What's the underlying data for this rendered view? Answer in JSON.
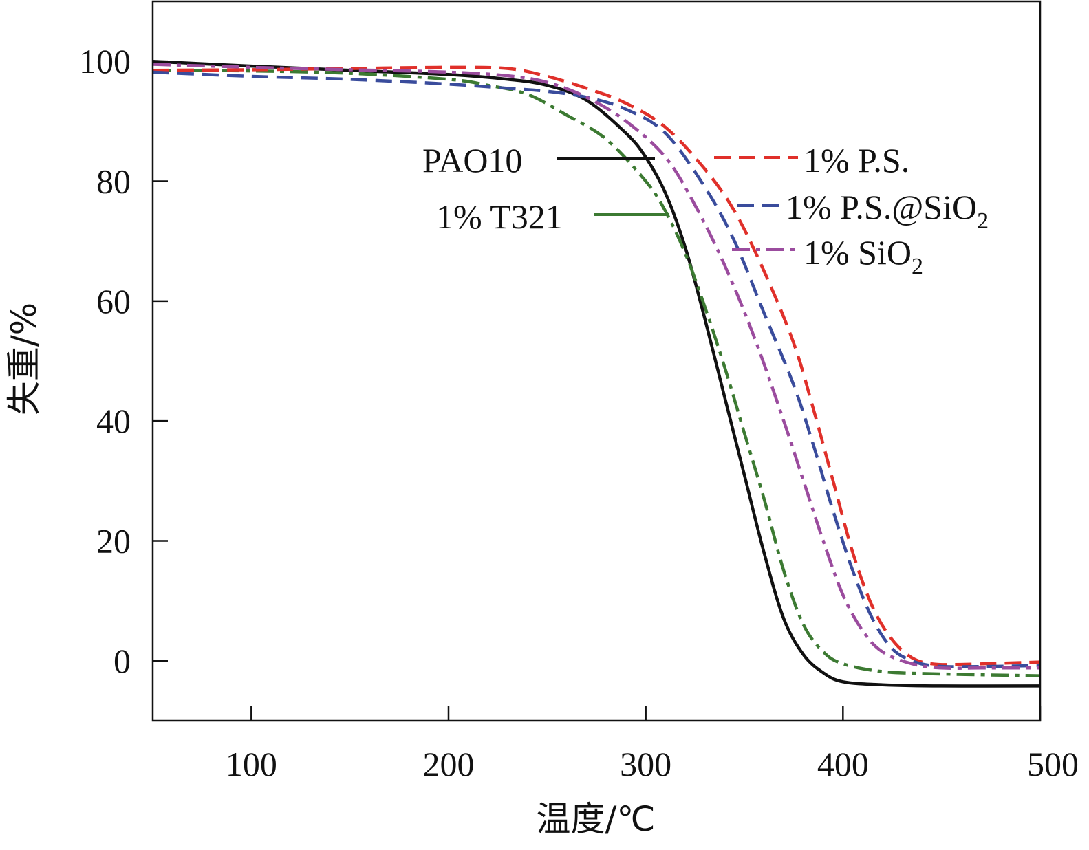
{
  "chart_data": {
    "type": "line",
    "title": "",
    "xlabel": "温度/℃",
    "ylabel": "失重/%",
    "xlim": [
      50,
      500
    ],
    "ylim": [
      -10,
      110
    ],
    "xticks": [
      100,
      200,
      300,
      400,
      500
    ],
    "yticks": [
      0,
      20,
      40,
      60,
      80,
      100
    ],
    "x_tick_labels": [
      "100",
      "200",
      "300",
      "400",
      "500"
    ],
    "y_tick_labels": [
      "0",
      "20",
      "40",
      "60",
      "80",
      "100"
    ],
    "grid": false,
    "series": [
      {
        "name": "PAO10",
        "color": "#111111",
        "style": "solid",
        "x": [
          50,
          100,
          150,
          200,
          230,
          250,
          270,
          290,
          300,
          310,
          320,
          330,
          340,
          350,
          360,
          370,
          380,
          390,
          400,
          420,
          450,
          500
        ],
        "y": [
          100,
          99.2,
          98.5,
          97.8,
          97,
          96,
          93.5,
          88,
          84,
          78,
          69,
          57,
          44,
          31,
          18,
          7,
          1,
          -2,
          -3.5,
          -4,
          -4.2,
          -4.2
        ]
      },
      {
        "name": "1% T321",
        "color": "#3c7a32",
        "style": "dashdot",
        "x": [
          50,
          100,
          150,
          200,
          220,
          240,
          260,
          280,
          300,
          310,
          320,
          330,
          340,
          350,
          360,
          370,
          380,
          390,
          400,
          420,
          450,
          500
        ],
        "y": [
          98.5,
          98.4,
          98,
          97,
          96,
          94.5,
          91,
          87,
          80,
          75,
          68,
          59,
          49,
          38,
          27,
          15,
          6,
          1.5,
          -0.5,
          -1.8,
          -2.2,
          -2.5
        ]
      },
      {
        "name": "1% P.S.",
        "color": "#e0302a",
        "style": "dashed",
        "x": [
          50,
          100,
          150,
          200,
          230,
          250,
          270,
          290,
          310,
          330,
          345,
          360,
          375,
          385,
          395,
          405,
          415,
          425,
          435,
          445,
          460,
          500
        ],
        "y": [
          98.5,
          98.6,
          98.8,
          99,
          98.8,
          97.5,
          95.5,
          93,
          89,
          82,
          75,
          65,
          53,
          42,
          30,
          18,
          9,
          3.5,
          0.5,
          -0.5,
          -0.6,
          -0.2
        ]
      },
      {
        "name": "1% P.S.@SiO2",
        "color": "#3a4c9c",
        "style": "dashed",
        "x": [
          50,
          100,
          150,
          200,
          230,
          250,
          270,
          290,
          310,
          330,
          345,
          360,
          375,
          385,
          395,
          405,
          415,
          425,
          435,
          445,
          460,
          500
        ],
        "y": [
          98.2,
          97.5,
          97,
          96.2,
          95.5,
          95,
          94,
          92,
          88,
          79,
          70,
          58,
          46,
          36,
          25,
          15,
          7,
          2,
          0,
          -0.8,
          -1,
          -0.8
        ]
      },
      {
        "name": "1% SiO2",
        "color": "#9b4c9e",
        "style": "dashdot",
        "x": [
          50,
          100,
          150,
          200,
          230,
          250,
          270,
          290,
          310,
          325,
          340,
          355,
          370,
          380,
          390,
          400,
          410,
          420,
          435,
          450,
          470,
          500
        ],
        "y": [
          99.5,
          99,
          98.6,
          98.2,
          97.6,
          96.5,
          94,
          90,
          84,
          76,
          66,
          54,
          40,
          30,
          20,
          11,
          5,
          1.5,
          -0.5,
          -1.2,
          -1.2,
          -1.2
        ]
      }
    ],
    "legend": [
      {
        "label": "PAO10",
        "series": "PAO10"
      },
      {
        "label": "1% T321",
        "series": "1% T321"
      },
      {
        "label_main": "1% P.S.",
        "series": "1% P.S."
      },
      {
        "label_main": "1% P.S.@SiO",
        "label_sub": "2",
        "series": "1% P.S.@SiO2"
      },
      {
        "label_main": "1% SiO",
        "label_sub": "2",
        "series": "1% SiO2"
      }
    ]
  }
}
